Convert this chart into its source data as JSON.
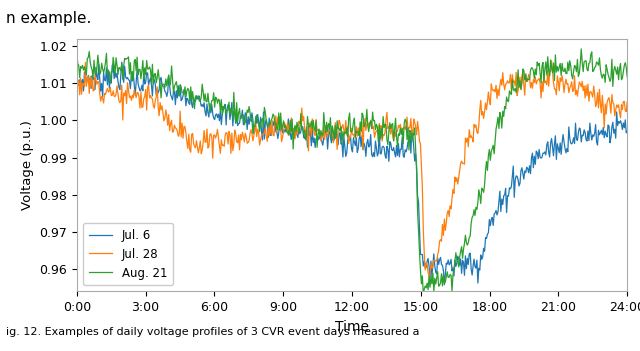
{
  "xlabel": "Time",
  "ylabel": "Voltage (p.u.)",
  "ylim": [
    0.954,
    1.022
  ],
  "xlim": [
    0,
    24
  ],
  "yticks": [
    0.96,
    0.97,
    0.98,
    0.99,
    1.0,
    1.01,
    1.02
  ],
  "xticks": [
    0,
    3,
    6,
    9,
    12,
    15,
    18,
    21,
    24
  ],
  "xtick_labels": [
    "0:00",
    "3:00",
    "6:00",
    "9:00",
    "12:00",
    "15:00",
    "18:00",
    "21:00",
    "24:00"
  ],
  "legend_labels": [
    "Jul. 6",
    "Jul. 28",
    "Aug. 21"
  ],
  "colors": [
    "#1f77b4",
    "#ff7f0e",
    "#2ca02c"
  ],
  "linewidth": 0.9,
  "background_color": "#ffffff",
  "top_text": "n example.",
  "bottom_text": "ig. 12. Examples of daily voltage profiles of 3 CVR event days measured a"
}
